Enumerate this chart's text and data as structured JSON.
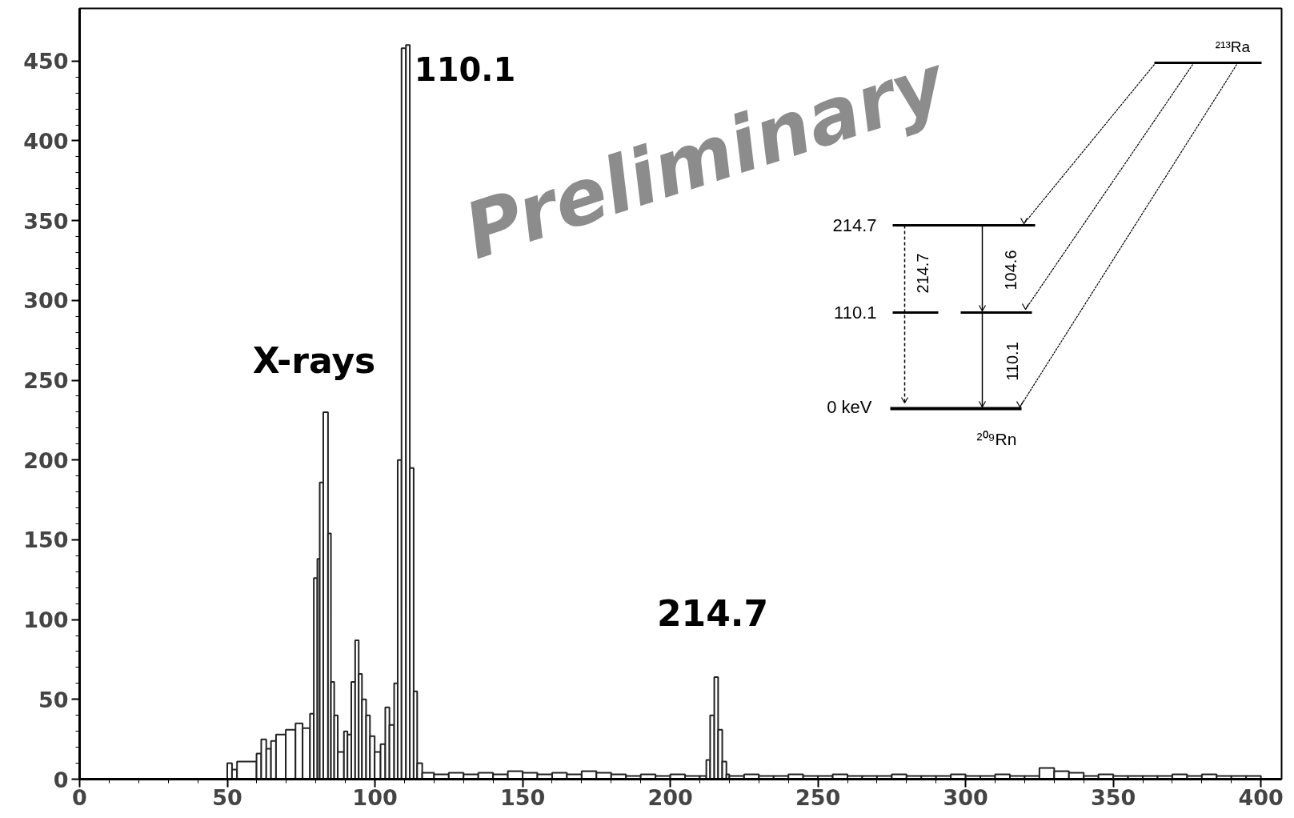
{
  "chart_data": {
    "type": "histogram",
    "bins": [
      50,
      51.6,
      53.3,
      59.9,
      61.5,
      63.2,
      64.8,
      66.5,
      69.8,
      73.1,
      75.5,
      78.0,
      79.3,
      80.5,
      81.3,
      82.5,
      84.1,
      85.1,
      86.2,
      87.4,
      89.5,
      90.7,
      92.0,
      93.3,
      94.5,
      95.6,
      97.0,
      98.3,
      99.9,
      101.9,
      103.5,
      104.9,
      106.5,
      107.7,
      109.0,
      110.5,
      111.8,
      113.1,
      114.3,
      116,
      120,
      125,
      130,
      135,
      140,
      145,
      150,
      155,
      160,
      165,
      170,
      175,
      180,
      185,
      190,
      195,
      200,
      205,
      210,
      212.2,
      213.5,
      214.9,
      216.2,
      217.6,
      219,
      220,
      225,
      230,
      235,
      240,
      245,
      250,
      255,
      260,
      265,
      270,
      275,
      280,
      285,
      290,
      295,
      300,
      305,
      310,
      315,
      320,
      325,
      330,
      335,
      340,
      345,
      350,
      355,
      360,
      365,
      370,
      375,
      380,
      385,
      390,
      395,
      400
    ],
    "values": [
      10,
      6,
      11,
      16,
      25,
      19,
      24,
      28,
      31,
      35,
      32,
      41,
      126,
      138,
      186,
      230,
      154,
      61,
      40,
      17,
      30,
      28,
      61,
      87,
      66,
      50,
      40,
      27,
      17,
      22,
      45,
      34,
      60,
      200,
      458,
      460,
      195,
      55,
      10,
      4,
      3,
      4,
      3,
      4,
      3,
      5,
      4,
      3,
      4,
      3,
      5,
      4,
      3,
      2,
      3,
      2,
      3,
      2,
      2,
      12,
      40,
      64,
      31,
      11,
      3,
      2,
      3,
      2,
      2,
      3,
      2,
      2,
      3,
      2,
      2,
      2,
      3,
      2,
      2,
      2,
      3,
      2,
      2,
      3,
      2,
      2,
      7,
      5,
      4,
      2,
      3,
      2,
      2,
      2,
      2,
      3,
      2,
      3,
      2,
      2,
      2
    ],
    "color": "#222222",
    "xlim": [
      0,
      407
    ],
    "ylim": [
      0,
      483
    ],
    "xticks": [
      0,
      50,
      100,
      150,
      200,
      250,
      300,
      350,
      400
    ],
    "yticks": [
      0,
      50,
      100,
      150,
      200,
      250,
      300,
      350,
      400,
      450
    ],
    "annotations": [
      {
        "text": "110.1",
        "x": 110.1,
        "y": 460
      },
      "214.7",
      "X-rays",
      "Preliminary",
      "²¹³Ra",
      "214.7",
      "110.1",
      "0  keV",
      "²⁰⁹Rn",
      "214.7",
      "104.6",
      "110.1"
    ]
  }
}
